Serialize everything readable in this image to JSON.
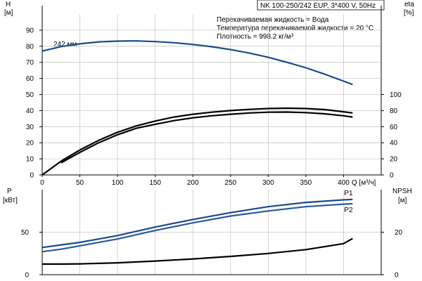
{
  "chart_data": [
    {
      "type": "line",
      "title": "NK 100-250/242 EUP, 3*400 V, 50Hz",
      "info_lines": [
        "Перекачиваемая жидкость = Вода",
        "Температура перекачиваемой жидкости = 20 °C",
        "Плотность = 998.2 кг/м³"
      ],
      "xlabel": "Q [м³/ч]",
      "xlim": [
        0,
        450
      ],
      "x_ticks": [
        "0",
        "50",
        "100",
        "150",
        "200",
        "250",
        "300",
        "350",
        "400"
      ],
      "y_left_label": [
        "H",
        "[м]"
      ],
      "y_left_lim": [
        0,
        100
      ],
      "y_left_ticks": [
        "0",
        "10",
        "20",
        "30",
        "40",
        "50",
        "60",
        "70",
        "80",
        "90"
      ],
      "y_right_label": [
        "eta",
        "[%]"
      ],
      "y_right_lim": [
        0,
        200
      ],
      "y_right_ticks": [
        "0",
        "20",
        "40",
        "60",
        "80",
        "100"
      ],
      "grid": true,
      "annotation": "242 мм",
      "series": [
        {
          "name": "H",
          "axis": "left",
          "color": "#1a4a8a",
          "x": [
            0,
            25,
            50,
            75,
            100,
            125,
            150,
            175,
            200,
            225,
            250,
            275,
            300,
            325,
            350,
            375,
            400,
            412
          ],
          "y": [
            77,
            79.8,
            81.5,
            82.7,
            83.2,
            83.3,
            82.9,
            82.2,
            81.1,
            79.7,
            77.9,
            75.7,
            73.1,
            70.0,
            66.6,
            62.6,
            58.3,
            56.2
          ]
        },
        {
          "axis": "right",
          "color": "#000000",
          "x": [
            0,
            25,
            50,
            75,
            100,
            125,
            150,
            175,
            200,
            225,
            250,
            275,
            300,
            325,
            350,
            375,
            400,
            412
          ],
          "y": [
            0,
            17,
            31,
            43,
            53,
            61,
            67,
            72,
            75.5,
            78,
            80,
            81.5,
            82.5,
            83,
            82.5,
            81.2,
            78.5,
            77
          ]
        },
        {
          "axis": "right",
          "color": "#000000",
          "x": [
            25,
            50,
            75,
            100,
            125,
            150,
            175,
            200,
            225,
            250,
            275,
            300,
            325,
            350,
            375,
            400,
            412
          ],
          "y": [
            15,
            28,
            40,
            50,
            58,
            63,
            67.5,
            71,
            73.5,
            75.5,
            77,
            78,
            78.2,
            77.5,
            76,
            73.5,
            72
          ]
        }
      ]
    },
    {
      "type": "line",
      "xlim": [
        0,
        450
      ],
      "y_left_label": [
        "P",
        "[кВт]"
      ],
      "y_left_lim": [
        0,
        100
      ],
      "y_left_ticks": [
        "0",
        "50"
      ],
      "y_right_label": [
        "NPSH",
        "[м]"
      ],
      "y_right_lim": [
        0,
        40
      ],
      "y_right_ticks": [
        "0",
        "20"
      ],
      "grid": true,
      "series": [
        {
          "name": "P1",
          "axis": "left",
          "color": "#1a4a8a",
          "x": [
            0,
            25,
            50,
            100,
            150,
            200,
            250,
            300,
            350,
            400,
            412
          ],
          "y": [
            32,
            35,
            38,
            46,
            56,
            65,
            73,
            80,
            85,
            88,
            88.5
          ]
        },
        {
          "name": "P2",
          "axis": "left",
          "color": "#2a5aa0",
          "x": [
            0,
            25,
            50,
            100,
            150,
            200,
            250,
            300,
            350,
            400,
            412
          ],
          "y": [
            27,
            30,
            34,
            42,
            52,
            61,
            69,
            75,
            80,
            83,
            83.5
          ]
        },
        {
          "axis": "right",
          "color": "#000000",
          "x": [
            0,
            25,
            50,
            100,
            150,
            200,
            250,
            300,
            350,
            400,
            412
          ],
          "y": [
            5,
            5,
            5.1,
            5.6,
            6.4,
            7.4,
            8.6,
            10,
            11.8,
            14.6,
            17
          ]
        }
      ]
    }
  ]
}
